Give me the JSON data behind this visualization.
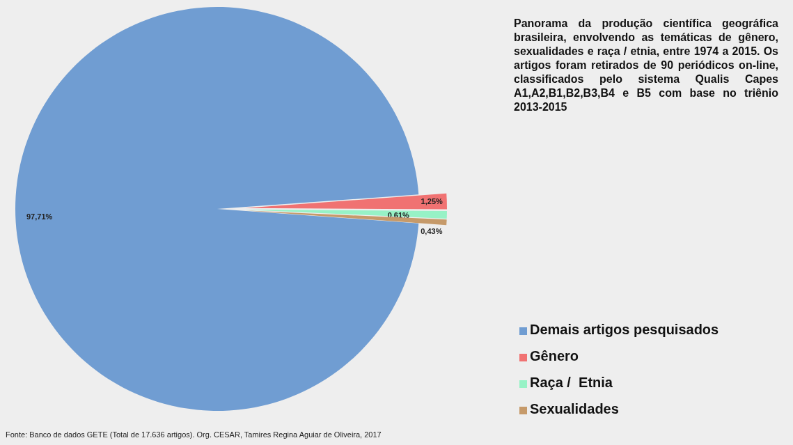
{
  "chart_data": {
    "type": "pie",
    "title": "Panorama da produção científica geográfica brasileira, envolvendo as temáticas de gênero, sexualidades e raça / etnia, entre 1974 a 2015. Os artigos foram retirados de 90 periódicos on-line, classificados pelo sistema Qualis Capes A1,A2,B1,B2,B3,B4 e B5 com base no triênio 2013-2015",
    "categories": [
      "Demais artigos pesquisados",
      "Gênero",
      "Raça /  Etnia",
      "Sexualidades"
    ],
    "values": [
      97.71,
      1.25,
      0.61,
      0.43
    ],
    "value_labels": [
      "97,71%",
      "1,25%",
      "0,61%",
      "0,43%"
    ],
    "colors": [
      "#709dd2",
      "#f07272",
      "#97f2c6",
      "#c69a6a"
    ],
    "legend": "bottom right",
    "annotations": [
      "Fonte: Banco de dados GETE (Total de 17.636 artigos). Org. CESAR, Tamires Regina Aguiar de Oliveira, 2017"
    ]
  }
}
